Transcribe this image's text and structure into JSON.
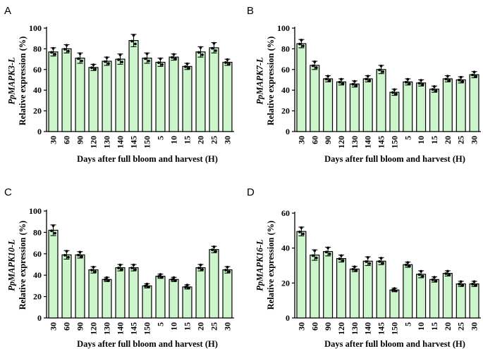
{
  "colors": {
    "bar": "#ccf5cc",
    "stroke": "#000000",
    "dot": "#000000"
  },
  "chart_data": [
    {
      "type": "bar",
      "panel": "A",
      "gene": "PpMAPK3-L",
      "ylabel": "Relative expression (%)",
      "xlabel": "Days after full bloom and harvest (H)",
      "categories": [
        "30",
        "60",
        "90",
        "120",
        "130",
        "140",
        "145",
        "150",
        "5",
        "10",
        "15",
        "20",
        "25",
        "30"
      ],
      "values": [
        77,
        80,
        71,
        62,
        68,
        70,
        88,
        71,
        67,
        72,
        63,
        77,
        81,
        67
      ],
      "errors": [
        4,
        4,
        5,
        3,
        4,
        5,
        6,
        5,
        4,
        3,
        3,
        5,
        5,
        3
      ],
      "ylim": [
        0,
        100
      ],
      "yticks": [
        "0",
        "20",
        "40",
        "60",
        "80",
        "100"
      ]
    },
    {
      "type": "bar",
      "panel": "B",
      "gene": "PpMAPK7-L",
      "ylabel": "Relative expression (%)",
      "xlabel": "Days after full bloom and harvest (H)",
      "categories": [
        "30",
        "60",
        "90",
        "120",
        "130",
        "140",
        "145",
        "150",
        "5",
        "10",
        "15",
        "20",
        "25",
        "30"
      ],
      "values": [
        85,
        64,
        51,
        48,
        46,
        51,
        60,
        38,
        48,
        47,
        41,
        51,
        50,
        55
      ],
      "errors": [
        4,
        4,
        3,
        3,
        3,
        3,
        4,
        3,
        3,
        3,
        3,
        3,
        3,
        3
      ],
      "ylim": [
        0,
        100
      ],
      "yticks": [
        "0",
        "20",
        "40",
        "60",
        "80",
        "100"
      ]
    },
    {
      "type": "bar",
      "panel": "C",
      "gene": "PpMAPK10-L",
      "ylabel": "Relative expression (%)",
      "xlabel": "Days after full bloom and harvest (H)",
      "categories": [
        "30",
        "60",
        "90",
        "120",
        "130",
        "140",
        "145",
        "150",
        "5",
        "10",
        "15",
        "20",
        "25",
        "30"
      ],
      "values": [
        82,
        59,
        59,
        45,
        36,
        47,
        47,
        30,
        39,
        36,
        29,
        47,
        64,
        45
      ],
      "errors": [
        5,
        4,
        3,
        3,
        2,
        3,
        3,
        2,
        2,
        2,
        2,
        3,
        3,
        3
      ],
      "ylim": [
        0,
        100
      ],
      "yticks": [
        "0",
        "20",
        "40",
        "60",
        "80",
        "100"
      ]
    },
    {
      "type": "bar",
      "panel": "D",
      "gene": "PpMAPK16-L",
      "ylabel": "Relative expression (%)",
      "xlabel": "Days after full bloom and harvest (H)",
      "categories": [
        "30",
        "60",
        "90",
        "120",
        "130",
        "140",
        "145",
        "150",
        "5",
        "10",
        "15",
        "20",
        "25",
        "30"
      ],
      "values": [
        49.5,
        36,
        38,
        34,
        28,
        32.5,
        32.5,
        16,
        30.5,
        25,
        22,
        25.5,
        19.5,
        19.5
      ],
      "errors": [
        2.5,
        3,
        2.5,
        2,
        1.5,
        2.5,
        2,
        1,
        1.5,
        2,
        1.5,
        1.5,
        1.5,
        1.5
      ],
      "ylim": [
        0,
        60
      ],
      "yticks": [
        "0",
        "20",
        "40",
        "60"
      ]
    }
  ]
}
